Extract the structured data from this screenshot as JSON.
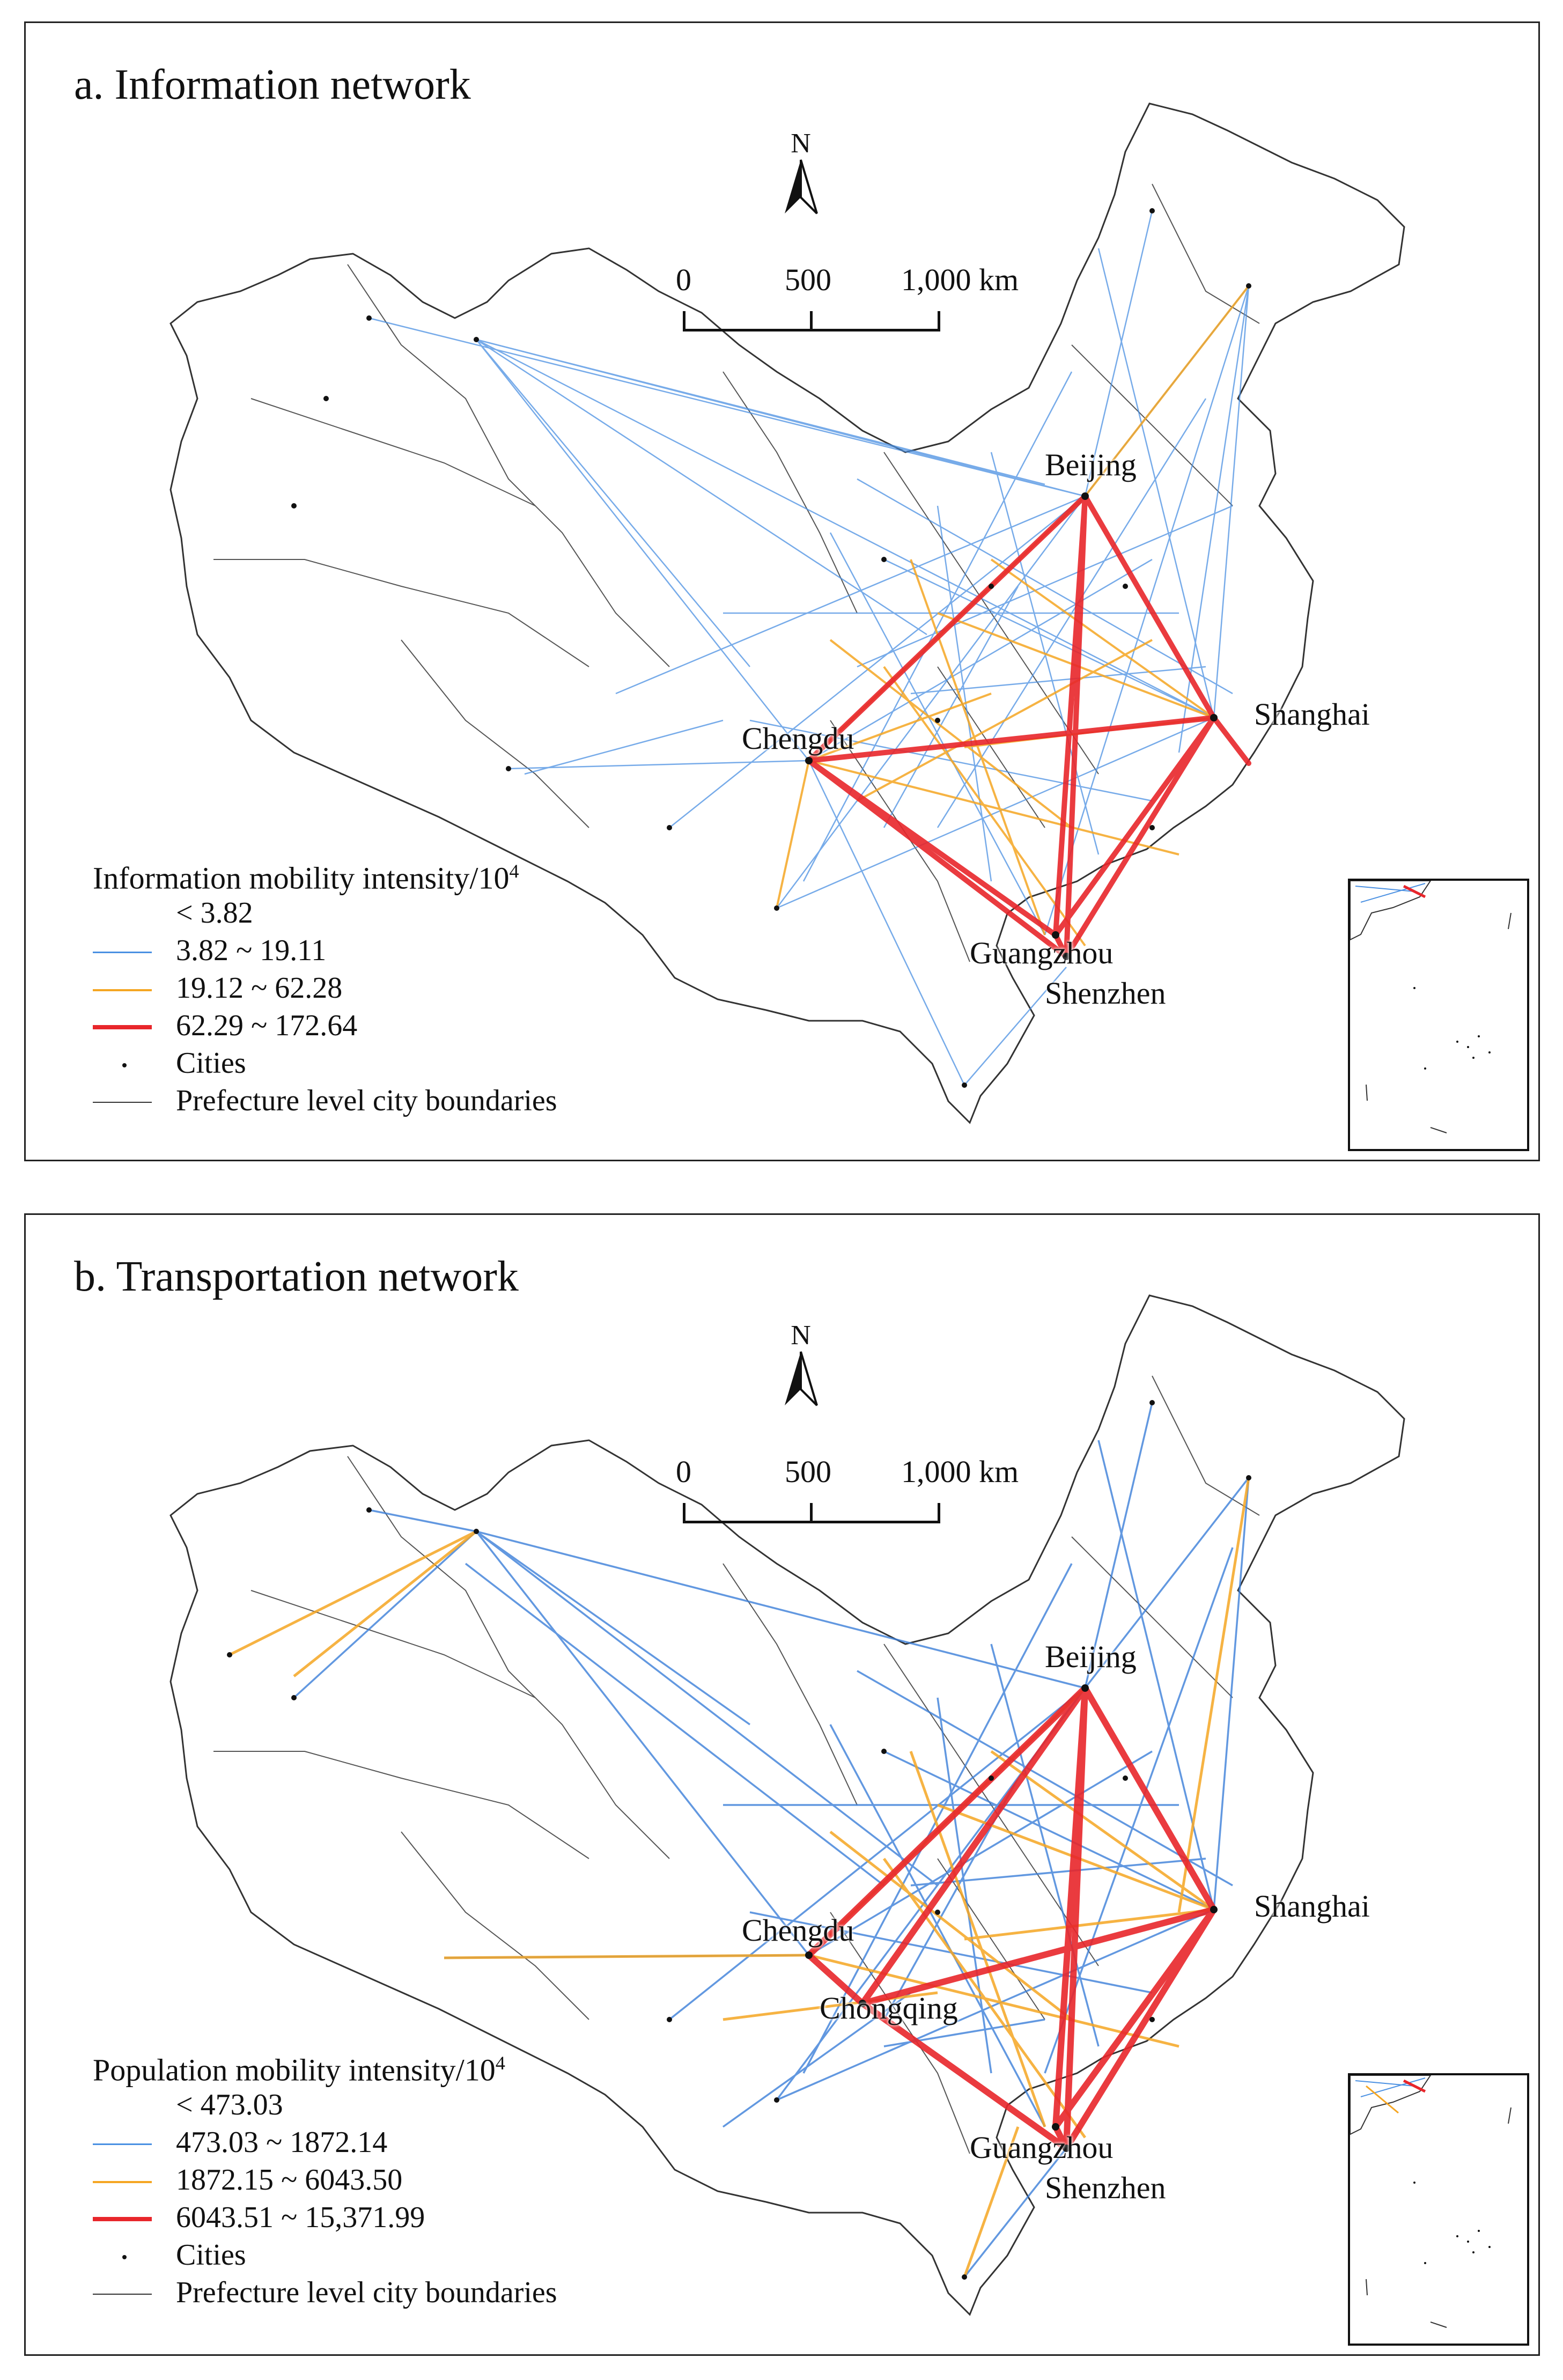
{
  "panels": [
    {
      "id": "a",
      "title": "a. Information network",
      "north": "N",
      "scale": {
        "labels": [
          "0",
          "500",
          "1,000 km"
        ]
      },
      "cities": {
        "beijing": "Beijing",
        "shanghai": "Shanghai",
        "chengdu": "Chengdu",
        "guangzhou": "Guangzhou",
        "shenzhen": "Shenzhen"
      },
      "legend": {
        "title": "Information mobility intensity/10",
        "title_sup": "4",
        "classes": [
          {
            "label": "< 3.82",
            "color": "none"
          },
          {
            "label": "3.82 ~ 19.11",
            "color": "#4a90e2"
          },
          {
            "label": "19.12 ~ 62.28",
            "color": "#f5a623"
          },
          {
            "label": "62.29 ~ 172.64",
            "color": "#e8262b"
          }
        ],
        "cities_label": "Cities",
        "boundaries_label": "Prefecture level city boundaries"
      }
    },
    {
      "id": "b",
      "title": "b. Transportation network",
      "north": "N",
      "scale": {
        "labels": [
          "0",
          "500",
          "1,000 km"
        ]
      },
      "cities": {
        "beijing": "Beijing",
        "shanghai": "Shanghai",
        "chengdu": "Chengdu",
        "chongqing": "Chongqing",
        "guangzhou": "Guangzhou",
        "shenzhen": "Shenzhen"
      },
      "legend": {
        "title": "Population mobility intensity/10",
        "title_sup": "4",
        "classes": [
          {
            "label": "< 473.03",
            "color": "none"
          },
          {
            "label": "473.03 ~ 1872.14",
            "color": "#4a90e2"
          },
          {
            "label": "1872.15 ~ 6043.50",
            "color": "#f5a623"
          },
          {
            "label": "6043.51 ~ 15,371.99",
            "color": "#e8262b"
          }
        ],
        "cities_label": "Cities",
        "boundaries_label": "Prefecture level city boundaries"
      }
    }
  ]
}
